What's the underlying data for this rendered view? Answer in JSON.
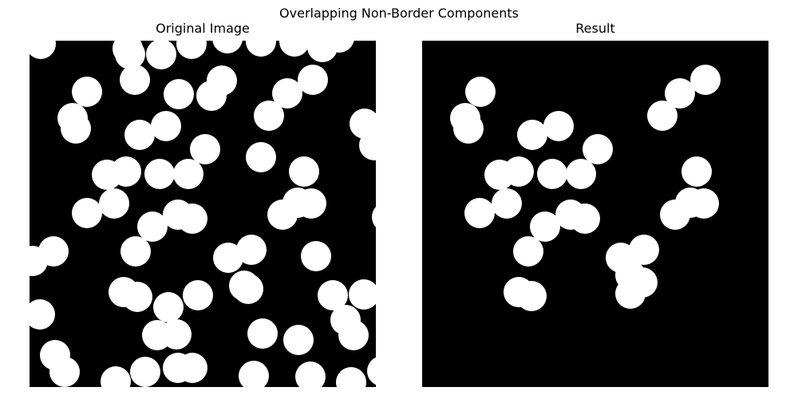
{
  "figure": {
    "suptitle": "Overlapping Non-Border Components"
  },
  "panels": {
    "left": {
      "title": "Original Image"
    },
    "right": {
      "title": "Result"
    }
  },
  "colors": {
    "background": "#000000",
    "blob": "#ffffff"
  }
}
